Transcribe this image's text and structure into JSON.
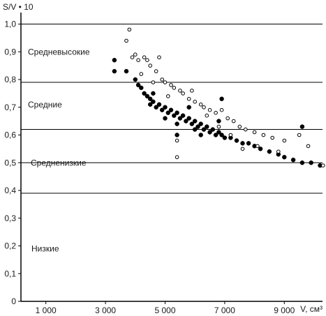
{
  "chart_data": {
    "type": "scatter",
    "ylabel": "S/V • 10",
    "xlabel": "V, см³",
    "xlim": [
      0,
      10500
    ],
    "ylim": [
      0,
      1.05
    ],
    "x_ticks": [
      {
        "value": 1000,
        "label": "1 000"
      },
      {
        "value": 3000,
        "label": "3 000"
      },
      {
        "value": 5000,
        "label": "5 000"
      },
      {
        "value": 7000,
        "label": "7 000"
      },
      {
        "value": 9000,
        "label": "9 000"
      }
    ],
    "y_ticks": [
      {
        "value": 0,
        "label": "0"
      },
      {
        "value": 0.1,
        "label": "0,1"
      },
      {
        "value": 0.2,
        "label": "0,2"
      },
      {
        "value": 0.3,
        "label": "0,3"
      },
      {
        "value": 0.4,
        "label": "0,4"
      },
      {
        "value": 0.5,
        "label": "0,5"
      },
      {
        "value": 0.6,
        "label": "0,6"
      },
      {
        "value": 0.7,
        "label": "0,7"
      },
      {
        "value": 0.8,
        "label": "0,8"
      },
      {
        "value": 0.9,
        "label": "0,9"
      },
      {
        "value": 1.0,
        "label": "1,0"
      }
    ],
    "zone_boundaries": [
      1.0,
      0.79,
      0.62,
      0.5,
      0.39
    ],
    "zones": [
      {
        "label": "Средневысокие",
        "y": 0.9
      },
      {
        "label": "Средние",
        "y": 0.71
      },
      {
        "label": "Средненизкие",
        "y": 0.5
      },
      {
        "label": "Низкие",
        "y": 0.19
      }
    ],
    "series": [
      {
        "marker": "filled",
        "color": "#000000",
        "points": [
          [
            3300,
            0.87
          ],
          [
            3300,
            0.83
          ],
          [
            3700,
            0.83
          ],
          [
            4000,
            0.8
          ],
          [
            4100,
            0.78
          ],
          [
            4200,
            0.77
          ],
          [
            4300,
            0.75
          ],
          [
            4400,
            0.74
          ],
          [
            4500,
            0.73
          ],
          [
            4500,
            0.71
          ],
          [
            4600,
            0.72
          ],
          [
            4700,
            0.7
          ],
          [
            4800,
            0.71
          ],
          [
            4900,
            0.69
          ],
          [
            5000,
            0.7
          ],
          [
            5100,
            0.68
          ],
          [
            5200,
            0.69
          ],
          [
            5300,
            0.67
          ],
          [
            5400,
            0.68
          ],
          [
            5500,
            0.66
          ],
          [
            5600,
            0.67
          ],
          [
            5700,
            0.65
          ],
          [
            5800,
            0.66
          ],
          [
            5900,
            0.64
          ],
          [
            6000,
            0.65
          ],
          [
            6100,
            0.63
          ],
          [
            6200,
            0.64
          ],
          [
            6300,
            0.62
          ],
          [
            6400,
            0.63
          ],
          [
            6500,
            0.61
          ],
          [
            6600,
            0.62
          ],
          [
            6700,
            0.6
          ],
          [
            6800,
            0.61
          ],
          [
            6900,
            0.6
          ],
          [
            7000,
            0.59
          ],
          [
            7200,
            0.59
          ],
          [
            7400,
            0.58
          ],
          [
            7600,
            0.57
          ],
          [
            7800,
            0.57
          ],
          [
            8000,
            0.56
          ],
          [
            8200,
            0.55
          ],
          [
            8500,
            0.54
          ],
          [
            8800,
            0.53
          ],
          [
            9000,
            0.52
          ],
          [
            9300,
            0.51
          ],
          [
            9600,
            0.5
          ],
          [
            9900,
            0.5
          ],
          [
            10200,
            0.49
          ],
          [
            4600,
            0.75
          ],
          [
            5000,
            0.66
          ],
          [
            5400,
            0.64
          ],
          [
            5800,
            0.7
          ],
          [
            6200,
            0.6
          ],
          [
            6800,
            0.65
          ],
          [
            6900,
            0.73
          ],
          [
            9600,
            0.63
          ],
          [
            5400,
            0.6
          ],
          [
            6000,
            0.62
          ]
        ]
      },
      {
        "marker": "hollow",
        "color": "#000000",
        "points": [
          [
            3800,
            0.98
          ],
          [
            3700,
            0.94
          ],
          [
            3900,
            0.88
          ],
          [
            4000,
            0.89
          ],
          [
            4100,
            0.87
          ],
          [
            4300,
            0.88
          ],
          [
            4400,
            0.87
          ],
          [
            4500,
            0.85
          ],
          [
            4700,
            0.83
          ],
          [
            4800,
            0.88
          ],
          [
            4900,
            0.8
          ],
          [
            5000,
            0.79
          ],
          [
            5200,
            0.78
          ],
          [
            5300,
            0.77
          ],
          [
            5500,
            0.76
          ],
          [
            5600,
            0.75
          ],
          [
            5800,
            0.73
          ],
          [
            6000,
            0.72
          ],
          [
            6200,
            0.71
          ],
          [
            6300,
            0.7
          ],
          [
            6500,
            0.69
          ],
          [
            6700,
            0.68
          ],
          [
            6900,
            0.69
          ],
          [
            7100,
            0.66
          ],
          [
            7300,
            0.65
          ],
          [
            7500,
            0.63
          ],
          [
            7700,
            0.62
          ],
          [
            8000,
            0.61
          ],
          [
            8300,
            0.6
          ],
          [
            8600,
            0.59
          ],
          [
            9000,
            0.58
          ],
          [
            9500,
            0.6
          ],
          [
            9800,
            0.56
          ],
          [
            4200,
            0.82
          ],
          [
            4600,
            0.79
          ],
          [
            5100,
            0.74
          ],
          [
            5400,
            0.58
          ],
          [
            5400,
            0.52
          ],
          [
            5900,
            0.76
          ],
          [
            6400,
            0.67
          ],
          [
            6800,
            0.63
          ],
          [
            7200,
            0.6
          ],
          [
            7600,
            0.55
          ],
          [
            8100,
            0.56
          ],
          [
            8800,
            0.54
          ],
          [
            10300,
            0.49
          ]
        ]
      }
    ]
  }
}
